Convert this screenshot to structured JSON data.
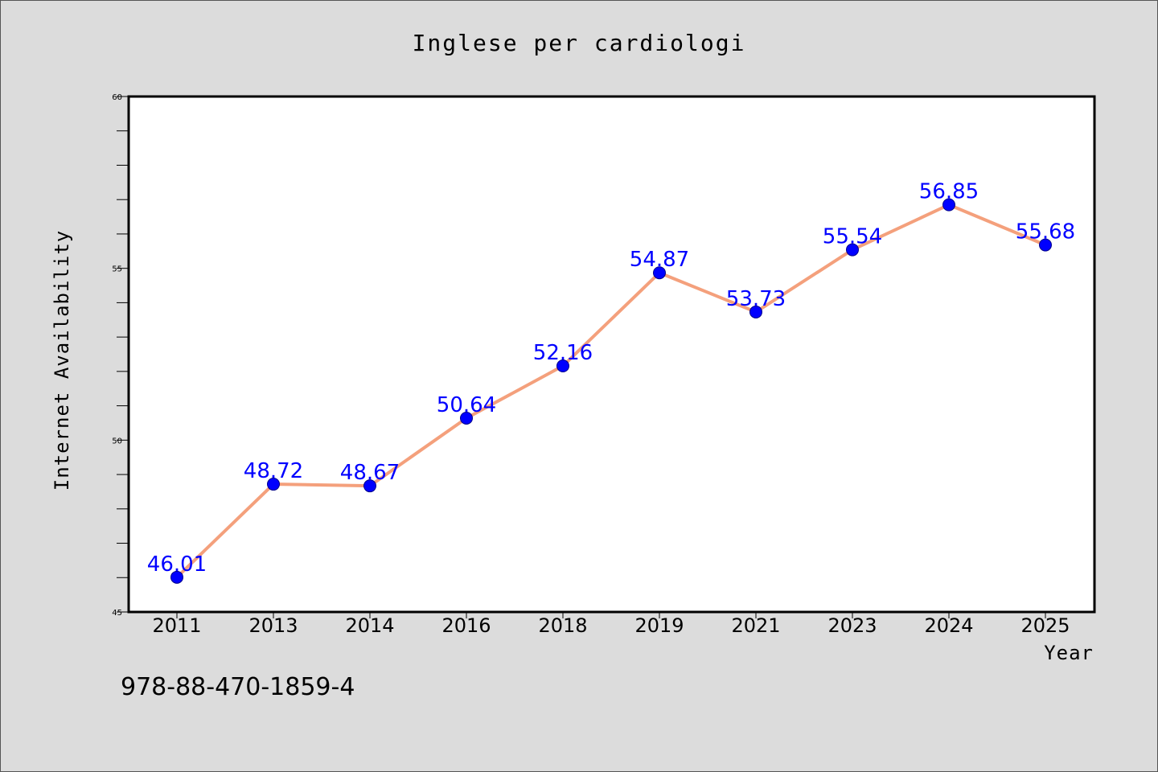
{
  "chart_data": {
    "type": "line",
    "title": "Inglese per cardiologi",
    "xlabel": "Year",
    "ylabel": "Internet Availability",
    "categories": [
      "2011",
      "2013",
      "2014",
      "2016",
      "2018",
      "2019",
      "2021",
      "2023",
      "2024",
      "2025"
    ],
    "series": [
      {
        "values": [
          46.01,
          48.72,
          48.67,
          50.64,
          52.16,
          54.87,
          53.73,
          55.54,
          56.85,
          55.68
        ],
        "labels": [
          "46.01",
          "48.72",
          "48.67",
          "50.64",
          "52.16",
          "54.87",
          "53.73",
          "55.54",
          "56.85",
          "55.68"
        ]
      }
    ],
    "ylim": [
      45,
      60
    ],
    "yticks": [
      "45",
      "50",
      "55",
      "60"
    ],
    "grid": false,
    "colors": {
      "line": "#f4a07c",
      "marker": "#0000ff",
      "data_label": "#0000ff",
      "background": "#dcdcdc",
      "plot_bg": "#ffffff"
    }
  },
  "footer": {
    "text": "978-88-470-1859-4"
  }
}
